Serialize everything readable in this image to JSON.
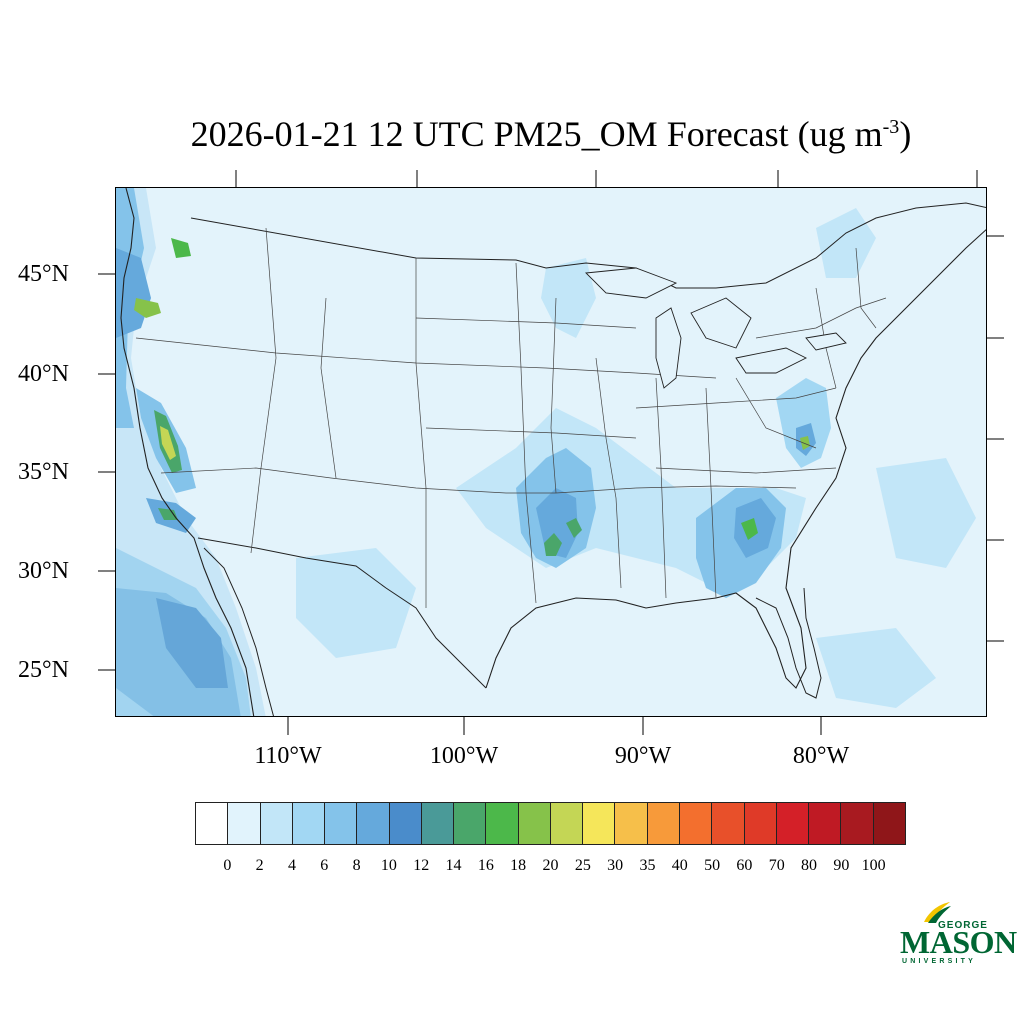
{
  "title": {
    "text": "2026-01-21 12 UTC PM25_OM Forecast (ug m",
    "superscript": "-3",
    "close": ")"
  },
  "map": {
    "variable": "PM25_OM",
    "units": "ug m-3",
    "lat_labels": [
      "45°N",
      "40°N",
      "35°N",
      "30°N",
      "25°N"
    ],
    "lon_labels": [
      "110°W",
      "100°W",
      "90°W",
      "80°W"
    ],
    "background_color": "#e3f3fb",
    "ocean_color": "#cfeaf8",
    "boundary_color": "#333333"
  },
  "colorbar": {
    "labels": [
      "0",
      "2",
      "4",
      "6",
      "8",
      "10",
      "12",
      "14",
      "16",
      "18",
      "20",
      "25",
      "30",
      "35",
      "40",
      "50",
      "60",
      "70",
      "80",
      "90",
      "100"
    ],
    "colors": [
      "#ffffff",
      "#e1f3fc",
      "#c2e6f8",
      "#a2d7f3",
      "#84c3ea",
      "#65a9dc",
      "#4a8ccb",
      "#4a9a98",
      "#4aa66a",
      "#4cb84a",
      "#86c24a",
      "#c4d655",
      "#f5e65a",
      "#f6bf4a",
      "#f79a3a",
      "#f36f2e",
      "#e8502a",
      "#df3a28",
      "#d42028",
      "#bf1a24",
      "#a81a20",
      "#8f1619"
    ]
  },
  "logo": {
    "line1": "GEORGE",
    "line2": "MASON",
    "line3": "UNIVERSITY",
    "color": "#006633",
    "accent": "#f2c500"
  }
}
